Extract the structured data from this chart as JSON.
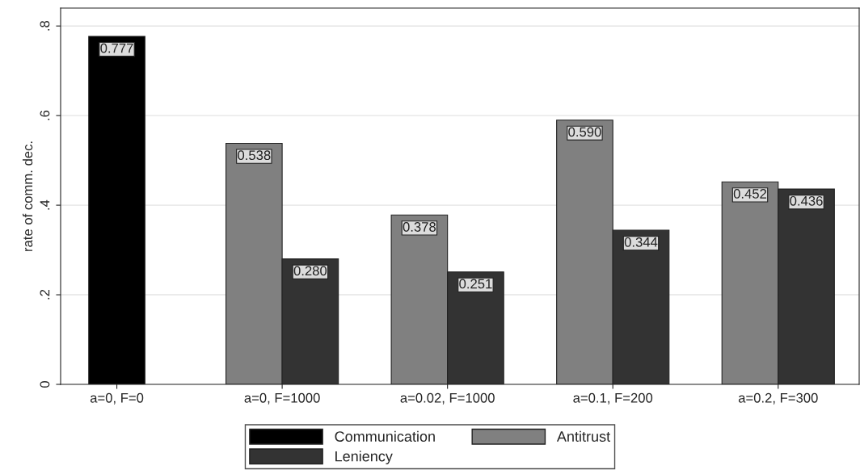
{
  "chart_data": {
    "type": "bar",
    "ylabel": "rate of comm. dec.",
    "categories": [
      "a=0, F=0",
      "a=0, F=1000",
      "a=0.02, F=1000",
      "a=0.1, F=200",
      "a=0.2, F=300"
    ],
    "series": [
      {
        "name": "Communication",
        "color": "#000000",
        "values": [
          0.777,
          null,
          null,
          null,
          null
        ],
        "value_labels": [
          "0.777",
          null,
          null,
          null,
          null
        ]
      },
      {
        "name": "Antitrust",
        "color": "#808080",
        "values": [
          null,
          0.538,
          0.378,
          0.59,
          0.452
        ],
        "value_labels": [
          null,
          "0.538",
          "0.378",
          "0.590",
          "0.452"
        ]
      },
      {
        "name": "Leniency",
        "color": "#333333",
        "values": [
          null,
          0.28,
          0.251,
          0.344,
          0.436
        ],
        "value_labels": [
          null,
          "0.280",
          "0.251",
          "0.344",
          "0.436"
        ]
      }
    ],
    "ylim": [
      0,
      0.84
    ],
    "yticks": [
      {
        "value": 0,
        "label": "0"
      },
      {
        "value": 0.2,
        "label": ".2"
      },
      {
        "value": 0.4,
        "label": ".4"
      },
      {
        "value": 0.6,
        "label": ".6"
      },
      {
        "value": 0.8,
        "label": ".8"
      }
    ],
    "grid": "y",
    "legend": "bottom"
  }
}
